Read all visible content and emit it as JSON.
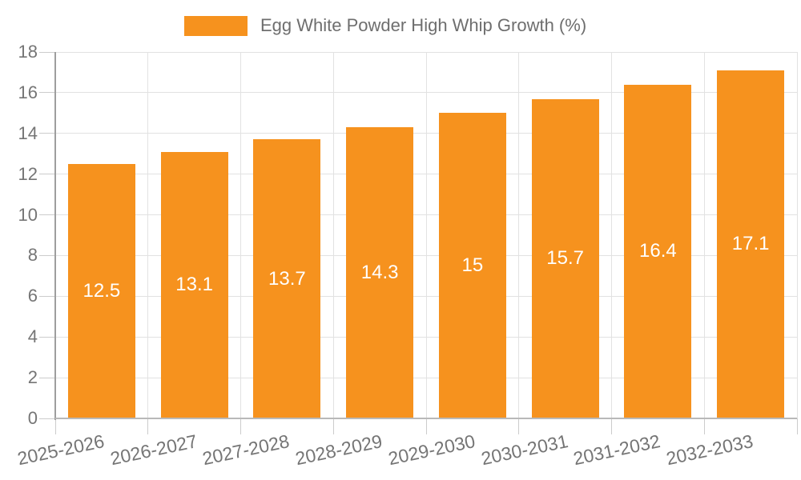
{
  "legend": {
    "label": "Egg White Powder High Whip Growth (%)",
    "swatch_color": "#f6921e"
  },
  "chart_data": {
    "type": "bar",
    "title": "",
    "categories": [
      "2025-2026",
      "2026-2027",
      "2027-2028",
      "2028-2029",
      "2029-2030",
      "2030-2031",
      "2031-2032",
      "2032-2033"
    ],
    "values": [
      12.5,
      13.1,
      13.7,
      14.3,
      15,
      15.7,
      16.4,
      17.1
    ],
    "series_name": "Egg White Powder High Whip Growth (%)",
    "xlabel": "",
    "ylabel": "",
    "ylim": [
      0,
      18
    ],
    "ytick_step": 2,
    "grid": true,
    "legend_position": "top",
    "bar_color": "#f6921e",
    "bar_label_color": "#ffffff",
    "axis_text_color": "#757575"
  }
}
